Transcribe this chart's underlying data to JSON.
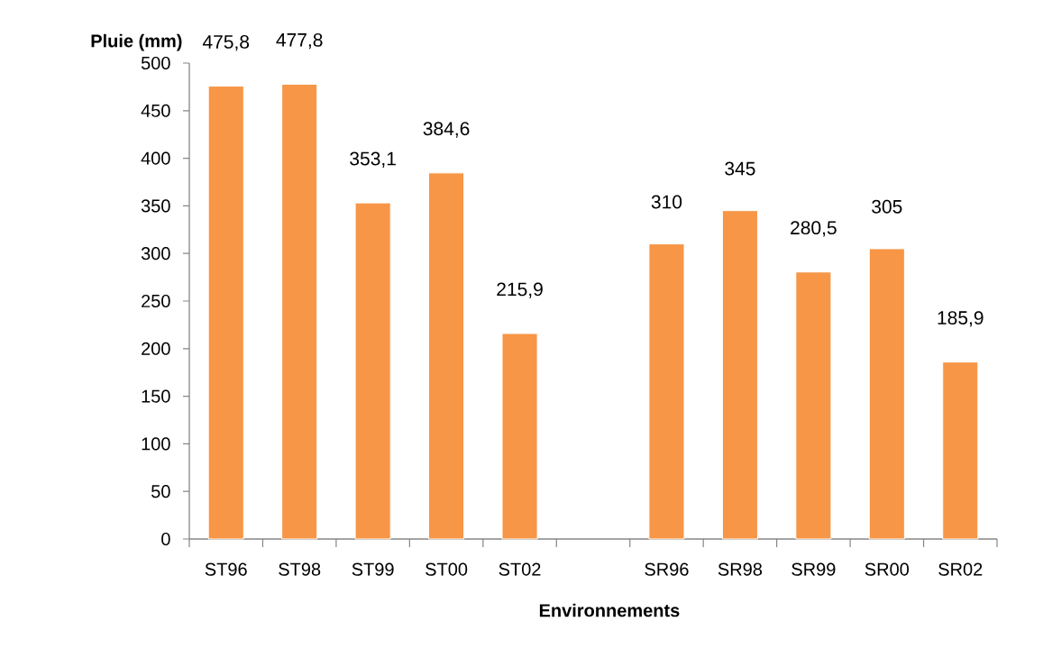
{
  "chart_data": {
    "type": "bar",
    "xlabel": "Environnements",
    "ylabel": "Pluie (mm)",
    "categories": [
      "ST96",
      "ST98",
      "ST99",
      "ST00",
      "ST02",
      null,
      "SR96",
      "SR98",
      "SR99",
      "SR00",
      "SR02"
    ],
    "values": [
      475.8,
      477.8,
      353.1,
      384.6,
      215.9,
      null,
      310,
      345,
      280.5,
      305,
      185.9
    ],
    "value_labels": [
      "475,8",
      "477,8",
      "353,1",
      "384,6",
      "215,9",
      null,
      "310",
      "345",
      "280,5",
      "305",
      "185,9"
    ],
    "color": "#f79646",
    "ylim": [
      0,
      500
    ],
    "yticks": [
      0,
      50,
      100,
      150,
      200,
      250,
      300,
      350,
      400,
      450,
      500
    ]
  }
}
